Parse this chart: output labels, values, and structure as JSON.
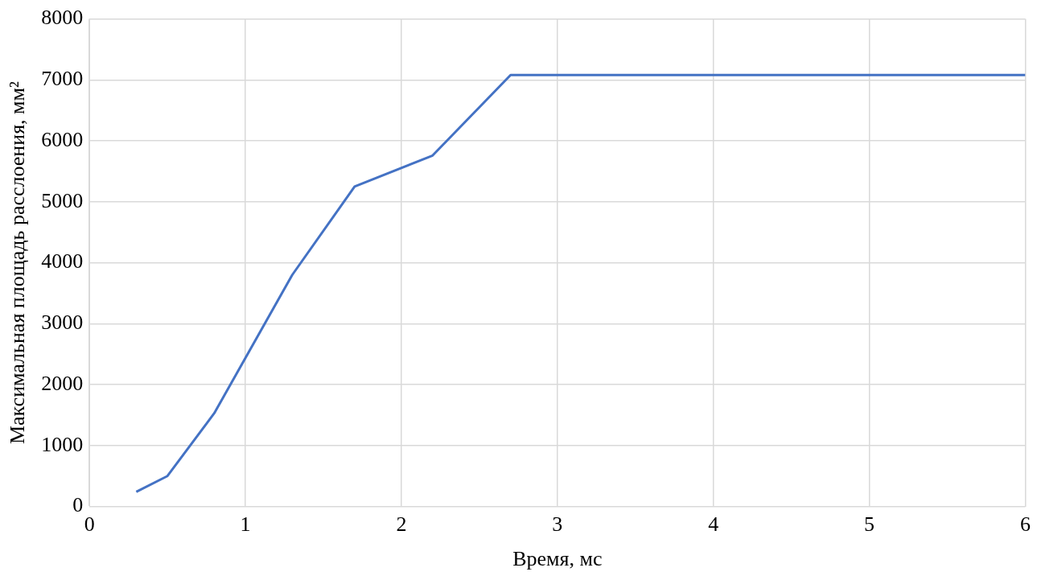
{
  "chart_data": {
    "type": "line",
    "xlabel": "Время, мс",
    "ylabel": "Максимальная площадь расслоения, мм²",
    "series": [
      {
        "color": "#4472c4",
        "x": [
          0.3,
          0.5,
          0.8,
          1.3,
          1.7,
          2.2,
          2.7,
          6
        ],
        "values": [
          240,
          500,
          1530,
          3800,
          5250,
          5760,
          7080,
          7080
        ]
      }
    ],
    "xlim": [
      0,
      6
    ],
    "xticks": [
      0,
      1,
      2,
      3,
      4,
      5,
      6
    ],
    "ylim": [
      0,
      8000
    ],
    "yticks": [
      0,
      1000,
      2000,
      3000,
      4000,
      5000,
      6000,
      7000,
      8000
    ],
    "grid": true,
    "legend": false,
    "marker": "none",
    "line_style": "solid"
  }
}
